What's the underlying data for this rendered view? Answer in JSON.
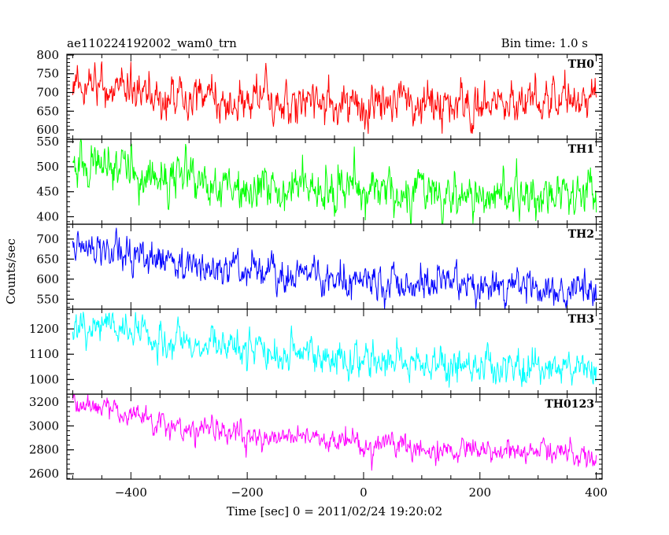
{
  "header": {
    "left_title": "ae110224192002_wam0_trn",
    "right_title": "Bin time: 1.0 s"
  },
  "chart_data": {
    "type": "line",
    "xlabel": "Time [sec] 0 = 2011/02/24 19:20:02",
    "ylabel": "Counts/sec",
    "xlim": [
      -510,
      410
    ],
    "x_ticks": [
      -400,
      -200,
      0,
      200,
      400
    ],
    "x_tick_labels": [
      "−400",
      "−200",
      "0",
      "200",
      "400"
    ],
    "x_start": -500,
    "x_end": 400,
    "bin_time": 1.0,
    "series": [
      {
        "name": "TH0",
        "color": "#ff0000",
        "ylim": [
          575,
          802
        ],
        "y_ticks": [
          600,
          650,
          700,
          750,
          800
        ],
        "trend": [
          [
            -500,
            725
          ],
          [
            -420,
            705
          ],
          [
            -400,
            715
          ],
          [
            -380,
            690
          ],
          [
            -300,
            685
          ],
          [
            -200,
            680
          ],
          [
            -100,
            672
          ],
          [
            0,
            670
          ],
          [
            100,
            672
          ],
          [
            200,
            670
          ],
          [
            300,
            672
          ],
          [
            400,
            677
          ]
        ],
        "noise_sd": 28,
        "clip": [
          560,
          802
        ]
      },
      {
        "name": "TH1",
        "color": "#00ff00",
        "ylim": [
          385,
          555
        ],
        "y_ticks": [
          400,
          450,
          500,
          550
        ],
        "trend": [
          [
            -500,
            505
          ],
          [
            -400,
            490
          ],
          [
            -300,
            470
          ],
          [
            -200,
            458
          ],
          [
            -100,
            453
          ],
          [
            0,
            448
          ],
          [
            100,
            447
          ],
          [
            200,
            444
          ],
          [
            300,
            444
          ],
          [
            400,
            440
          ]
        ],
        "noise_sd": 22,
        "clip": [
          380,
          555
        ]
      },
      {
        "name": "TH2",
        "color": "#0000ff",
        "ylim": [
          525,
          737
        ],
        "y_ticks": [
          550,
          600,
          650,
          700
        ],
        "trend": [
          [
            -500,
            685
          ],
          [
            -400,
            655
          ],
          [
            -300,
            632
          ],
          [
            -200,
            618
          ],
          [
            -100,
            607
          ],
          [
            0,
            600
          ],
          [
            100,
            592
          ],
          [
            200,
            585
          ],
          [
            300,
            577
          ],
          [
            400,
            567
          ]
        ],
        "noise_sd": 22,
        "clip": [
          520,
          737
        ]
      },
      {
        "name": "TH3",
        "color": "#00ffff",
        "ylim": [
          942,
          1278
        ],
        "y_ticks": [
          1000,
          1100,
          1200
        ],
        "trend": [
          [
            -500,
            1222
          ],
          [
            -400,
            1188
          ],
          [
            -300,
            1140
          ],
          [
            -200,
            1113
          ],
          [
            -100,
            1093
          ],
          [
            0,
            1075
          ],
          [
            100,
            1062
          ],
          [
            200,
            1050
          ],
          [
            300,
            1040
          ],
          [
            400,
            1030
          ]
        ],
        "noise_sd": 35,
        "clip": [
          940,
          1278
        ]
      },
      {
        "name": "TH0123",
        "color": "#ff00ff",
        "ylim": [
          2555,
          3265
        ],
        "y_ticks": [
          2600,
          2800,
          3000,
          3200
        ],
        "trend": [
          [
            -500,
            3185
          ],
          [
            -400,
            3090
          ],
          [
            -300,
            2990
          ],
          [
            -200,
            2925
          ],
          [
            -100,
            2880
          ],
          [
            0,
            2850
          ],
          [
            100,
            2818
          ],
          [
            200,
            2795
          ],
          [
            300,
            2785
          ],
          [
            400,
            2760
          ]
        ],
        "noise_sd": 48,
        "clip": [
          2560,
          3265
        ]
      }
    ]
  }
}
